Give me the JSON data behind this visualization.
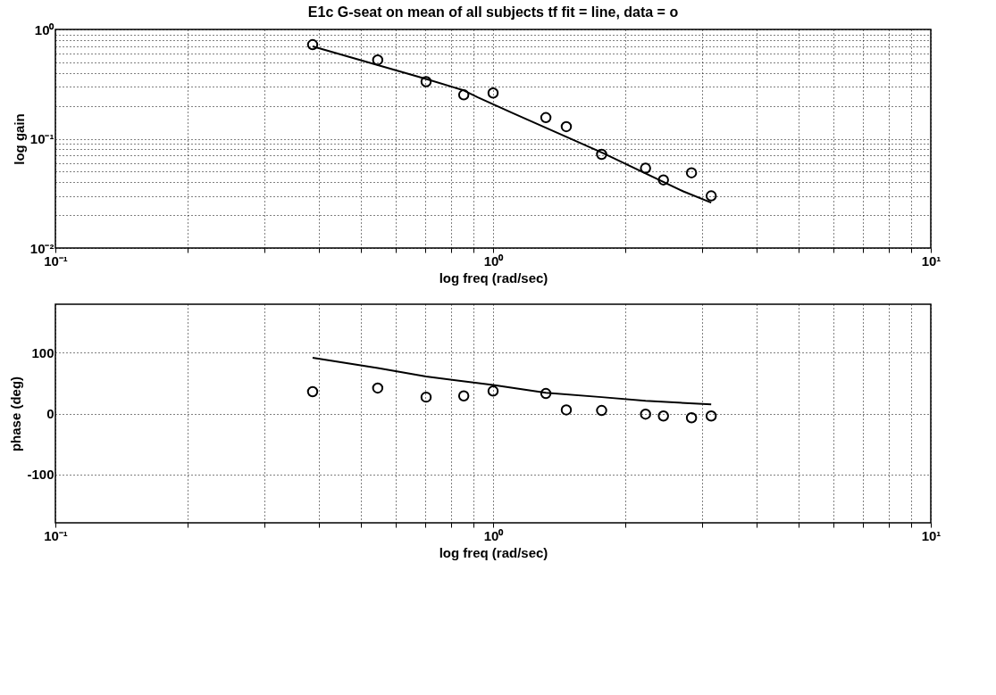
{
  "chart_data": [
    {
      "type": "scatter",
      "title": "E1c G-seat on mean of all subjects tf fit = line, data = o",
      "xlabel": "log freq (rad/sec)",
      "ylabel": "log gain",
      "log": "xy",
      "grid": true,
      "marker": "circle",
      "x": [
        0.387,
        0.545,
        0.703,
        0.857,
        1.0,
        1.32,
        1.47,
        1.77,
        2.23,
        2.45,
        2.84,
        3.15
      ],
      "xlim": [
        0.1,
        10
      ],
      "ylim": [
        0.01,
        1
      ],
      "xticks": [
        {
          "value": 0.1,
          "label": "10⁻¹"
        },
        {
          "value": 0.2,
          "label": null
        },
        {
          "value": 0.3,
          "label": null
        },
        {
          "value": 0.4,
          "label": null
        },
        {
          "value": 0.5,
          "label": null
        },
        {
          "value": 0.6,
          "label": null
        },
        {
          "value": 0.7,
          "label": null
        },
        {
          "value": 0.8,
          "label": null
        },
        {
          "value": 0.9,
          "label": null
        },
        {
          "value": 1,
          "label": "10⁰"
        },
        {
          "value": 2,
          "label": null
        },
        {
          "value": 3,
          "label": null
        },
        {
          "value": 4,
          "label": null
        },
        {
          "value": 5,
          "label": null
        },
        {
          "value": 6,
          "label": null
        },
        {
          "value": 7,
          "label": null
        },
        {
          "value": 8,
          "label": null
        },
        {
          "value": 9,
          "label": null
        },
        {
          "value": 10,
          "label": "10¹"
        }
      ],
      "yticks": [
        {
          "value": 0.01,
          "label": "10⁻²"
        },
        {
          "value": 0.02,
          "label": null
        },
        {
          "value": 0.03,
          "label": null
        },
        {
          "value": 0.04,
          "label": null
        },
        {
          "value": 0.05,
          "label": null
        },
        {
          "value": 0.06,
          "label": null
        },
        {
          "value": 0.07,
          "label": null
        },
        {
          "value": 0.08,
          "label": null
        },
        {
          "value": 0.09,
          "label": null
        },
        {
          "value": 0.1,
          "label": "10⁻¹"
        },
        {
          "value": 0.2,
          "label": null
        },
        {
          "value": 0.3,
          "label": null
        },
        {
          "value": 0.4,
          "label": null
        },
        {
          "value": 0.5,
          "label": null
        },
        {
          "value": 0.6,
          "label": null
        },
        {
          "value": 0.7,
          "label": null
        },
        {
          "value": 0.8,
          "label": null
        },
        {
          "value": 0.9,
          "label": null
        },
        {
          "value": 1,
          "label": "10⁰"
        }
      ],
      "series": [
        {
          "type": "scatter",
          "color": "#000000",
          "values": [
            0.725,
            0.526,
            0.333,
            0.252,
            0.262,
            0.156,
            0.129,
            0.072,
            0.0537,
            0.042,
            0.0488,
            0.03
          ]
        },
        {
          "type": "line",
          "color": "#000000",
          "marker": "none",
          "x": [
            0.387,
            0.703,
            0.857,
            0.923,
            1.11,
            1.77,
            2.72,
            3.15
          ],
          "values": [
            0.7,
            0.352,
            0.277,
            0.239,
            0.171,
            0.075,
            0.033,
            0.026
          ]
        }
      ]
    },
    {
      "type": "scatter",
      "xlabel": "log freq (rad/sec)",
      "ylabel": "phase (deg)",
      "log": "x",
      "grid": true,
      "marker": "circle",
      "x": [
        0.387,
        0.545,
        0.703,
        0.857,
        1.0,
        1.32,
        1.47,
        1.77,
        2.23,
        2.45,
        2.84,
        3.15
      ],
      "xlim": [
        0.1,
        10
      ],
      "ylim": [
        -180,
        180
      ],
      "xticks": [
        {
          "value": 0.1,
          "label": "10⁻¹"
        },
        {
          "value": 0.2,
          "label": null
        },
        {
          "value": 0.3,
          "label": null
        },
        {
          "value": 0.4,
          "label": null
        },
        {
          "value": 0.5,
          "label": null
        },
        {
          "value": 0.6,
          "label": null
        },
        {
          "value": 0.7,
          "label": null
        },
        {
          "value": 0.8,
          "label": null
        },
        {
          "value": 0.9,
          "label": null
        },
        {
          "value": 1,
          "label": "10⁰"
        },
        {
          "value": 2,
          "label": null
        },
        {
          "value": 3,
          "label": null
        },
        {
          "value": 4,
          "label": null
        },
        {
          "value": 5,
          "label": null
        },
        {
          "value": 6,
          "label": null
        },
        {
          "value": 7,
          "label": null
        },
        {
          "value": 8,
          "label": null
        },
        {
          "value": 9,
          "label": null
        },
        {
          "value": 10,
          "label": "10¹"
        }
      ],
      "yticks": [
        -100,
        0,
        100
      ],
      "series": [
        {
          "type": "scatter",
          "color": "#000000",
          "values": [
            36,
            42,
            27,
            29,
            37,
            33,
            6,
            5,
            -1,
            -4,
            -7,
            -4
          ]
        },
        {
          "type": "line",
          "color": "#000000",
          "marker": "none",
          "x": [
            0.387,
            0.545,
            0.703,
            1.0,
            1.32,
            1.77,
            2.23,
            3.15
          ],
          "values": [
            92,
            75,
            61,
            47,
            34,
            27,
            21,
            15
          ]
        }
      ]
    }
  ]
}
